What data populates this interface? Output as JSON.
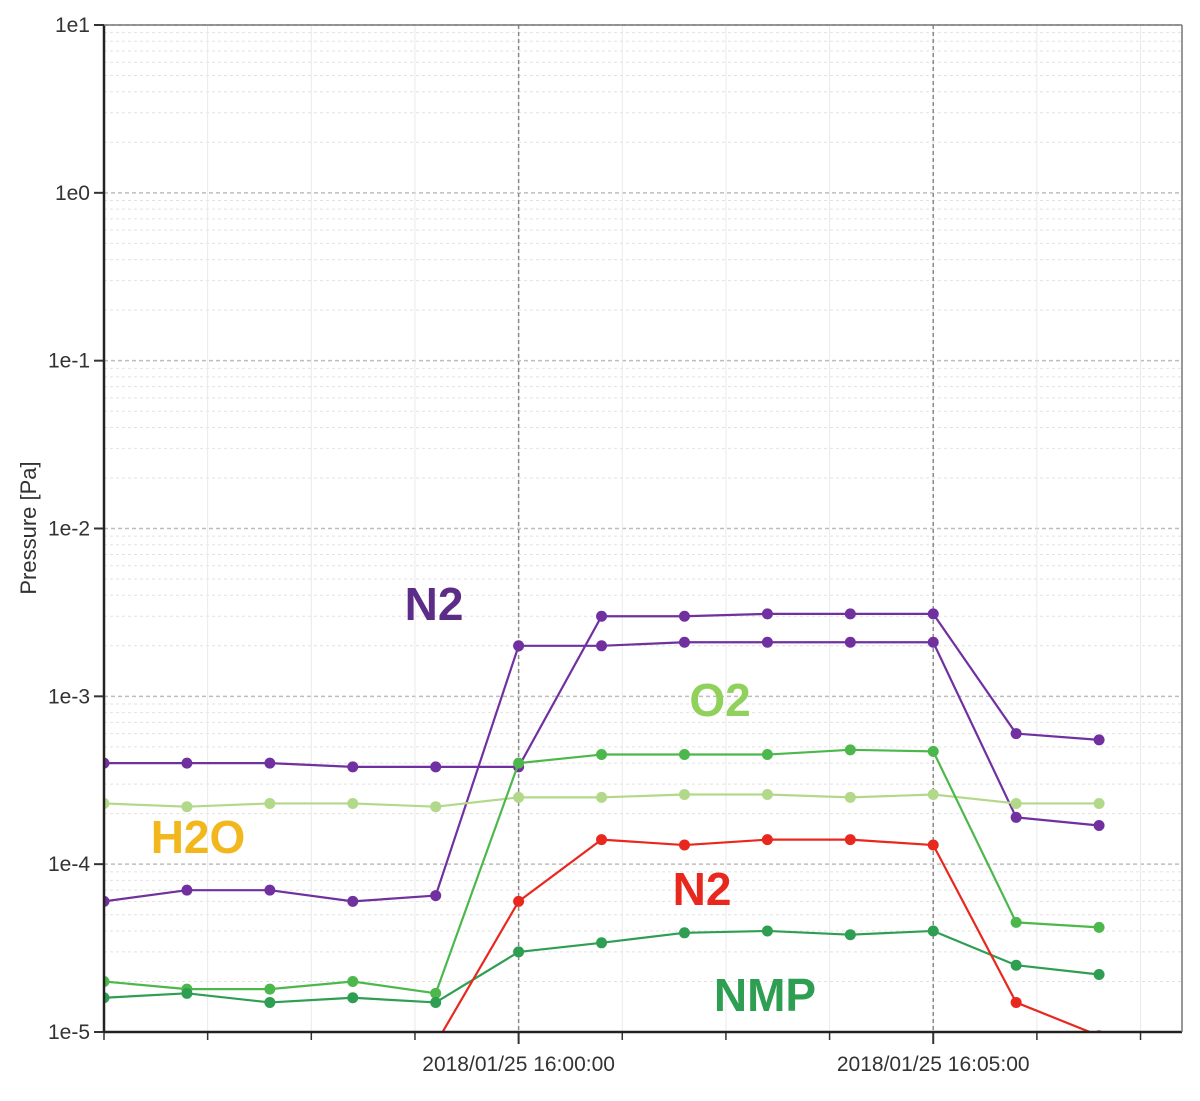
{
  "chart_data": {
    "type": "line",
    "ylabel": "Pressure [Pa]",
    "yscale": "log",
    "ylim": [
      1e-05,
      10
    ],
    "y_ticks": [
      {
        "value": 10,
        "label": "1e1"
      },
      {
        "value": 1,
        "label": "1e0"
      },
      {
        "value": 0.1,
        "label": "1e-1"
      },
      {
        "value": 0.01,
        "label": "1e-2"
      },
      {
        "value": 0.001,
        "label": "1e-3"
      },
      {
        "value": 0.0001,
        "label": "1e-4"
      },
      {
        "value": 1e-05,
        "label": "1e-5"
      }
    ],
    "xlim": [
      "2018/01/25 15:55:00",
      "2018/01/25 16:08:00"
    ],
    "x_ticks": [
      {
        "value": "2018/01/25 16:00:00",
        "label": "2018/01/25 16:00:00"
      },
      {
        "value": "2018/01/25 16:05:00",
        "label": "2018/01/25 16:05:00"
      }
    ],
    "grid": true,
    "x": [
      "2018/01/25 15:55:00",
      "2018/01/25 15:56:00",
      "2018/01/25 15:57:00",
      "2018/01/25 15:58:00",
      "2018/01/25 15:59:00",
      "2018/01/25 16:00:00",
      "2018/01/25 16:01:00",
      "2018/01/25 16:02:00",
      "2018/01/25 16:03:00",
      "2018/01/25 16:04:00",
      "2018/01/25 16:05:00",
      "2018/01/25 16:06:00",
      "2018/01/25 16:07:00",
      "2018/01/25 16:08:00"
    ],
    "series": [
      {
        "color": "#7030a0",
        "values": [
          0.0004,
          0.0004,
          0.0004,
          0.00038,
          0.00038,
          0.00038,
          0.003,
          0.003,
          0.0031,
          0.0031,
          0.0031,
          0.0006,
          0.00055,
          null
        ]
      },
      {
        "color": "#7030a0",
        "values": [
          6e-05,
          7e-05,
          7e-05,
          6e-05,
          6.5e-05,
          0.002,
          0.002,
          0.0021,
          0.0021,
          0.0021,
          0.0021,
          0.00019,
          0.00017,
          null
        ]
      },
      {
        "color": "#b2d98a",
        "values": [
          0.00023,
          0.00022,
          0.00023,
          0.00023,
          0.00022,
          0.00025,
          0.00025,
          0.00026,
          0.00026,
          0.00025,
          0.00026,
          0.00023,
          0.00023,
          null
        ]
      },
      {
        "color": "#4cb84c",
        "values": [
          2e-05,
          1.8e-05,
          1.8e-05,
          2e-05,
          1.7e-05,
          0.0004,
          0.00045,
          0.00045,
          0.00045,
          0.00048,
          0.00047,
          4.5e-05,
          4.2e-05,
          null
        ]
      },
      {
        "color": "#2e9e52",
        "values": [
          1.6e-05,
          1.7e-05,
          1.5e-05,
          1.6e-05,
          1.5e-05,
          3e-05,
          3.4e-05,
          3.9e-05,
          4e-05,
          3.8e-05,
          4e-05,
          2.5e-05,
          2.2e-05,
          null
        ]
      },
      {
        "color": "#e8281e",
        "values": [
          null,
          null,
          null,
          null,
          8.5e-06,
          6e-05,
          0.00014,
          0.00013,
          0.00014,
          0.00014,
          0.00013,
          1.5e-05,
          9.5e-06,
          null
        ]
      }
    ],
    "annotations": [
      {
        "text": "N2",
        "color": "#5b2d86"
      },
      {
        "text": "O2",
        "color": "#8fd15a"
      },
      {
        "text": "H2O",
        "color": "#f2b71c"
      },
      {
        "text": "N2",
        "color": "#e8281e"
      },
      {
        "text": "NMP",
        "color": "#2e9e52"
      }
    ]
  }
}
